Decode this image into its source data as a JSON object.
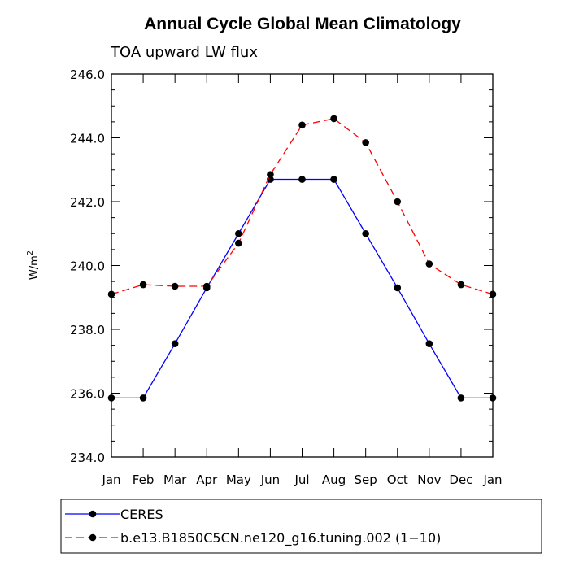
{
  "chart_data": {
    "type": "line",
    "title": "Annual Cycle Global Mean Climatology",
    "subtitle": "TOA upward LW flux",
    "xlabel": "",
    "ylabel_base": "W/m",
    "ylabel_sup": "2",
    "categories": [
      "Jan",
      "Feb",
      "Mar",
      "Apr",
      "May",
      "Jun",
      "Jul",
      "Aug",
      "Sep",
      "Oct",
      "Nov",
      "Dec",
      "Jan"
    ],
    "ylim": [
      234.0,
      246.0
    ],
    "yticks": [
      "234.0",
      "236.0",
      "238.0",
      "240.0",
      "242.0",
      "244.0",
      "246.0"
    ],
    "series": [
      {
        "name": "CERES",
        "color": "#0000ff",
        "dash": "solid",
        "values": [
          235.85,
          235.85,
          237.55,
          239.3,
          241.0,
          242.7,
          242.7,
          242.7,
          241.0,
          239.3,
          237.55,
          235.85,
          235.85
        ]
      },
      {
        "name": "b.e13.B1850C5CN.ne120_g16.tuning.002 (1−10)",
        "color": "#ff0000",
        "dash": "dashed",
        "values": [
          239.1,
          239.4,
          239.35,
          239.35,
          240.7,
          242.85,
          244.4,
          244.6,
          243.85,
          242.0,
          240.05,
          239.4,
          239.1
        ]
      }
    ],
    "legend_position": "bottom"
  }
}
